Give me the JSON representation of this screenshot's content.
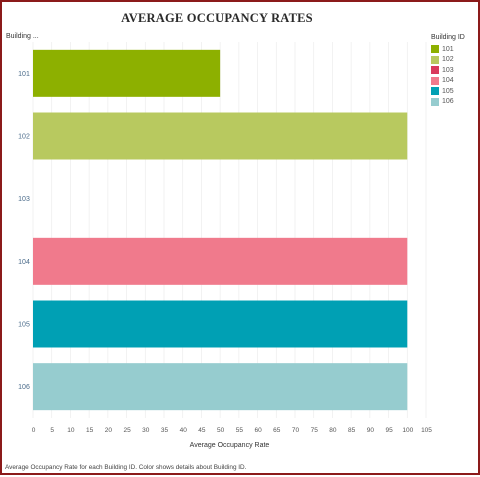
{
  "chart_data": {
    "type": "bar",
    "orientation": "horizontal",
    "title": "AVERAGE OCCUPANCY RATES",
    "row_header": "Building ...",
    "categories": [
      "101",
      "102",
      "103",
      "104",
      "105",
      "106"
    ],
    "values": [
      50,
      100,
      null,
      100,
      100,
      100
    ],
    "colors": [
      "#8db000",
      "#b8c95f",
      "#d93a5c",
      "#f07a8c",
      "#00a0b4",
      "#96cccf"
    ],
    "xlabel": "Average Occupancy Rate",
    "xlim": [
      0,
      105
    ],
    "x_ticks": [
      "0",
      "5",
      "10",
      "15",
      "20",
      "25",
      "30",
      "35",
      "40",
      "45",
      "50",
      "55",
      "60",
      "65",
      "70",
      "75",
      "80",
      "85",
      "90",
      "95",
      "100",
      "105"
    ],
    "grid": "vertical",
    "legend": {
      "title": "Building ID",
      "position": "right",
      "items": [
        {
          "label": "101",
          "color": "#8db000"
        },
        {
          "label": "102",
          "color": "#b8c95f"
        },
        {
          "label": "103",
          "color": "#d93a5c"
        },
        {
          "label": "104",
          "color": "#f07a8c"
        },
        {
          "label": "105",
          "color": "#00a0b4"
        },
        {
          "label": "106",
          "color": "#96cccf"
        }
      ]
    },
    "caption": "Average Occupancy Rate for each Building ID.  Color shows details about Building ID."
  },
  "colors": {
    "border": "#8b1a1a",
    "category_label": "#4a6b8a",
    "gridline": "#ececec",
    "axis": "#cccccc"
  }
}
